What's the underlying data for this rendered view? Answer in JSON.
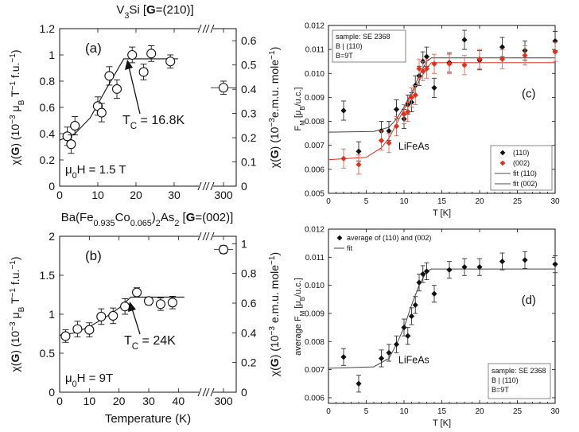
{
  "chart_data": [
    {
      "panel": "(a)",
      "type": "scatter",
      "title_parts": [
        "V",
        "3",
        "Si [",
        "G",
        "=(210)]"
      ],
      "label": "(a)",
      "xlabel": "",
      "ylabel_parts": [
        "χ(",
        "G",
        ") (10",
        "−3",
        " μ",
        "B",
        " T",
        "−1",
        " f.u.",
        "−1",
        ")"
      ],
      "y2label_parts": [
        "χ(",
        "G",
        ") (10",
        "−3",
        "e.m.u. mole",
        "−1",
        ")"
      ],
      "xticks": [
        "0",
        "10",
        "20",
        "30",
        "300"
      ],
      "yticks": [
        "0",
        "0.2",
        "0.4",
        "0.6",
        "0.8",
        "1",
        "1.2"
      ],
      "y2ticks": [
        "0",
        "0.1",
        "0.2",
        "0.3",
        "0.4",
        "0.5",
        "0.6"
      ],
      "ylim": [
        0,
        1.2
      ],
      "x_ranges": [
        [
          0,
          35
        ],
        [
          290,
          310
        ]
      ],
      "tc_label_parts": [
        "T",
        "C",
        " = 16.8K"
      ],
      "field_label_parts": [
        "μ",
        "0",
        "H = 1.5 T"
      ],
      "series": [
        {
          "name": "data",
          "x": [
            2,
            3,
            4,
            10,
            11,
            13,
            15,
            19,
            22,
            24,
            29,
            300
          ],
          "y": [
            0.38,
            0.32,
            0.46,
            0.61,
            0.56,
            0.84,
            0.74,
            1.0,
            0.87,
            1.01,
            0.95,
            0.75
          ],
          "err": [
            0.07,
            0.07,
            0.07,
            0.07,
            0.07,
            0.07,
            0.07,
            0.06,
            0.06,
            0.06,
            0.05,
            0.05
          ]
        }
      ],
      "fit": {
        "x": [
          0,
          4,
          8,
          12,
          16.8,
          31
        ],
        "y": [
          0.35,
          0.4,
          0.52,
          0.73,
          0.97,
          0.97
        ]
      }
    },
    {
      "panel": "(b)",
      "type": "scatter",
      "title_parts": [
        "Ba(Fe",
        "0.935",
        "Co",
        "0.065",
        ")",
        "2",
        "As",
        "2",
        " [",
        "G",
        "=(002)]"
      ],
      "label": "(b)",
      "xlabel": "Temperature (K)",
      "ylabel_parts": [
        "χ(",
        "G",
        ") (10",
        "−3",
        " μ",
        "B",
        " T",
        "−1",
        " f.u.",
        "−1",
        ")"
      ],
      "y2label_parts": [
        "χ(",
        "G",
        ") (10",
        "−3",
        " e.m.u. mole",
        "−1",
        ")"
      ],
      "xticks": [
        "0",
        "10",
        "20",
        "30",
        "40",
        "300"
      ],
      "yticks": [
        "0",
        "0.5",
        "1",
        "1.5",
        "2"
      ],
      "y2ticks": [
        "0",
        "0.2",
        "0.4",
        "0.6",
        "0.8",
        "1"
      ],
      "ylim": [
        0,
        2
      ],
      "x_ranges": [
        [
          0,
          45
        ],
        [
          290,
          310
        ]
      ],
      "tc_label_parts": [
        "T",
        "C",
        " = 24K"
      ],
      "field_label_parts": [
        "μ",
        "0",
        "H = 9T"
      ],
      "series": [
        {
          "name": "data",
          "x": [
            2,
            6,
            10,
            14,
            18,
            22,
            26,
            30,
            34,
            38,
            300
          ],
          "y": [
            0.72,
            0.81,
            0.8,
            0.97,
            0.98,
            1.1,
            1.28,
            1.17,
            1.13,
            1.15,
            1.83
          ],
          "err": [
            0.08,
            0.1,
            0.09,
            0.1,
            0.1,
            0.1,
            0.06,
            0.05,
            0.08,
            0.08,
            0.05
          ]
        }
      ],
      "fit": {
        "x": [
          0,
          5,
          10,
          15,
          20,
          24,
          42
        ],
        "y": [
          0.73,
          0.76,
          0.84,
          0.95,
          1.08,
          1.22,
          1.22
        ]
      }
    },
    {
      "panel": "(c)",
      "type": "scatter",
      "label": "(c)",
      "xlabel": "T [K]",
      "ylabel_parts": [
        "F",
        "M",
        " [μ",
        "B",
        "/u.c.]"
      ],
      "xticks": [
        "0",
        "5",
        "10",
        "15",
        "20",
        "25",
        "30"
      ],
      "yticks": [
        "0.005",
        "0.006",
        "0.007",
        "0.008",
        "0.009",
        "0.010",
        "0.011",
        "0.012"
      ],
      "xlim": [
        0,
        30
      ],
      "ylim": [
        0.005,
        0.012
      ],
      "sample_lines": [
        "sample: SE 2368",
        "B | (110)",
        "B=9T"
      ],
      "compound": "LiFeAs",
      "legend": [
        "(110)",
        "(002)",
        "fit (110)",
        "fit (002)"
      ],
      "series": [
        {
          "name": "(110)",
          "color": "#111111",
          "x": [
            2,
            4,
            7,
            8,
            9,
            10,
            10.5,
            11,
            11.5,
            12,
            12.5,
            13,
            14,
            16,
            18,
            20,
            23,
            26,
            30
          ],
          "y": [
            0.00845,
            0.00675,
            0.0076,
            0.0076,
            0.0085,
            0.0081,
            0.0087,
            0.0088,
            0.0095,
            0.0099,
            0.0105,
            0.0107,
            0.0094,
            0.01045,
            0.0114,
            0.01055,
            0.0111,
            0.01095,
            0.01135
          ],
          "err": [
            0.0004,
            0.0004,
            0.0004,
            0.0004,
            0.0004,
            0.0004,
            0.0004,
            0.0004,
            0.0004,
            0.0004,
            0.0004,
            0.0004,
            0.0004,
            0.0004,
            0.0004,
            0.0004,
            0.0004,
            0.0004,
            0.0004
          ]
        },
        {
          "name": "(002)",
          "color": "#e0301e",
          "x": [
            2,
            4,
            7,
            8,
            9,
            10,
            10.5,
            11,
            11.5,
            12,
            12.5,
            13,
            14,
            16,
            18,
            20,
            23,
            26,
            30
          ],
          "y": [
            0.00645,
            0.0062,
            0.0072,
            0.0071,
            0.0078,
            0.0083,
            0.0084,
            0.009,
            0.0091,
            0.0102,
            0.0101,
            0.0102,
            0.0104,
            0.0104,
            0.01035,
            0.0106,
            0.0106,
            0.01075,
            0.0109
          ],
          "err": [
            0.0004,
            0.0004,
            0.0004,
            0.0004,
            0.0004,
            0.0004,
            0.0004,
            0.0004,
            0.0004,
            0.0004,
            0.0004,
            0.0004,
            0.0004,
            0.0004,
            0.0004,
            0.0004,
            0.0004,
            0.0004,
            0.0004
          ]
        }
      ],
      "fits": [
        {
          "name": "fit (110)",
          "color": "#444444",
          "x": [
            0,
            6,
            8,
            9,
            10,
            11,
            12,
            13,
            13.6,
            30
          ],
          "y": [
            0.00755,
            0.00758,
            0.00775,
            0.0081,
            0.0086,
            0.0092,
            0.0099,
            0.0105,
            0.01065,
            0.01065
          ]
        },
        {
          "name": "fit (002)",
          "color": "#e0301e",
          "x": [
            0,
            5,
            7,
            8,
            9,
            10,
            11,
            12,
            13,
            13.6,
            30
          ],
          "y": [
            0.0064,
            0.0065,
            0.0069,
            0.0073,
            0.0079,
            0.0085,
            0.0091,
            0.0097,
            0.0102,
            0.01045,
            0.01045
          ]
        }
      ]
    },
    {
      "panel": "(d)",
      "type": "scatter",
      "label": "(d)",
      "xlabel": "T [K]",
      "ylabel_parts": [
        "average F",
        "M",
        " [μ",
        "B",
        "/u.c.]"
      ],
      "xticks": [
        "0",
        "5",
        "10",
        "15",
        "20",
        "25",
        "30"
      ],
      "yticks": [
        "0.006",
        "0.007",
        "0.008",
        "0.009",
        "0.010",
        "0.011",
        "0.012"
      ],
      "xlim": [
        0,
        30
      ],
      "ylim": [
        0.0058,
        0.012
      ],
      "compound": "LiFeAs",
      "sample_lines": [
        "sample: SE 2368",
        "B | (110)",
        "B=9T"
      ],
      "legend": [
        "average of (110) and (002)",
        "fit"
      ],
      "series": [
        {
          "name": "average of (110) and (002)",
          "color": "#111111",
          "x": [
            2,
            4,
            7,
            8,
            9,
            10,
            10.5,
            11,
            11.5,
            12,
            12.5,
            13,
            14,
            16,
            18,
            20,
            23,
            26,
            30
          ],
          "y": [
            0.00745,
            0.0065,
            0.0074,
            0.0076,
            0.0079,
            0.0085,
            0.0082,
            0.0089,
            0.0093,
            0.0101,
            0.0104,
            0.0105,
            0.0097,
            0.01055,
            0.01065,
            0.01065,
            0.01085,
            0.0109,
            0.01075
          ],
          "err": [
            0.0003,
            0.0003,
            0.0003,
            0.0003,
            0.0003,
            0.0003,
            0.0003,
            0.0003,
            0.0003,
            0.0003,
            0.0003,
            0.0003,
            0.0003,
            0.0003,
            0.0003,
            0.0003,
            0.0003,
            0.0003,
            0.0003
          ]
        }
      ],
      "fits": [
        {
          "name": "fit",
          "color": "#444444",
          "x": [
            0,
            6,
            8,
            9,
            10,
            11,
            12,
            13,
            13.6,
            30
          ],
          "y": [
            0.00705,
            0.0071,
            0.0074,
            0.0079,
            0.0085,
            0.0093,
            0.01,
            0.0105,
            0.01058,
            0.01058
          ]
        }
      ]
    }
  ]
}
